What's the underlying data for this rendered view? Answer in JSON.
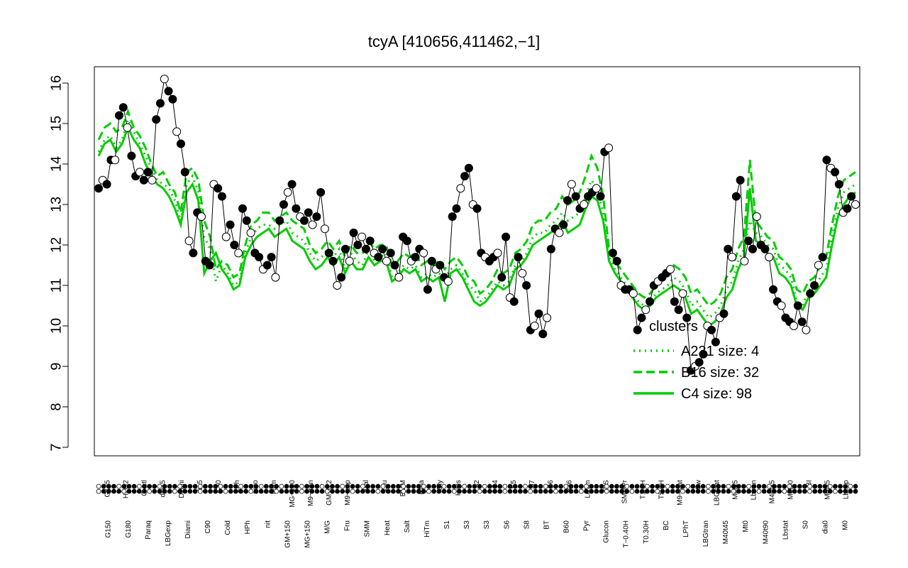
{
  "chart_data": {
    "type": "line",
    "title": "tcyA [410656,411462,−1]",
    "ylim": [
      7,
      16
    ],
    "yticks": [
      7,
      8,
      9,
      10,
      11,
      12,
      13,
      14,
      15,
      16
    ],
    "grid": false,
    "legend_position": "right",
    "legend_title": "clusters",
    "x_labels_top": [
      "G135",
      "H2O2",
      "Oxctl",
      "dia15",
      "Diami",
      "dia5",
      "C30",
      "LPh",
      "aero",
      "ferm",
      "MG+120",
      "M9−tran",
      "GM−0.2",
      "M9−exp",
      "Mal",
      "Glu",
      "BMM",
      "Etha",
      "Gly",
      "HiOs",
      "S2",
      "S4",
      "S5",
      "S7",
      "S6",
      "B36",
      "LoTm",
      "G/S",
      "SMMPr",
      "T1.0H",
      "T5.0H",
      "M9−stat",
      "Sw",
      "LBGstat",
      "M0t45",
      "Lbtran",
      "M40t45",
      "M0t90",
      "BI",
      "M0t45",
      "Lbexp"
    ],
    "x_labels_bottom": [
      "G150",
      "G180",
      "Paraq",
      "LBGexp",
      "Diami",
      "C90",
      "Cold",
      "HPh",
      "nit",
      "GM+150",
      "MG+150",
      "M/G",
      "Fru",
      "SMM",
      "Heat",
      "Salt",
      "HiTm",
      "S1",
      "S3",
      "S3",
      "S6",
      "S8",
      "BT",
      "B60",
      "Pyr",
      "Glucon",
      "T−0.40H",
      "T0.30H",
      "BC",
      "LPhT",
      "LBGtran",
      "M40t45",
      "Mt0",
      "M40t90",
      "Lbstat",
      "S0",
      "dia0",
      "M0"
    ],
    "series": [
      {
        "name": "A231 size: 4",
        "style": "dotted",
        "color": "#00cc00",
        "values": [
          14.3,
          14.6,
          14.7,
          14.4,
          14.6,
          15.1,
          14.8,
          14.5,
          14.2,
          13.9,
          13.6,
          13.5,
          13.4,
          13.1,
          12.6,
          13.5,
          13.7,
          13.3,
          12.2,
          11.9,
          11.1,
          11.5,
          11.3,
          11.0,
          11.1,
          11.8,
          12.2,
          12.4,
          12.5,
          12.5,
          12.4,
          12.5,
          12.6,
          12.3,
          12.2,
          12.1,
          11.8,
          11.6,
          11.7,
          11.9,
          11.7,
          11.9,
          11.4,
          11.8,
          11.6,
          11.5,
          11.9,
          11.6,
          11.7,
          11.8,
          11.2,
          11.3,
          11.5,
          11.4,
          11.5,
          11.2,
          11.3,
          11.2,
          11.3,
          11.2,
          11.4,
          11.5,
          11.3,
          11.0,
          10.9,
          10.6,
          10.7,
          10.9,
          11.1,
          11.0,
          11.1,
          11.5,
          11.6,
          11.8,
          12.2,
          12.3,
          12.3,
          12.5,
          12.6,
          12.8,
          12.6,
          12.7,
          12.8,
          13.2,
          13.6,
          13.4,
          12.8,
          11.7,
          11.4,
          11.2,
          11.0,
          10.8,
          10.6,
          10.5,
          10.6,
          10.8,
          10.9,
          11.0,
          11.2,
          11.1,
          10.9,
          10.5,
          10.6,
          10.4,
          10.2,
          10.3,
          10.5,
          10.9,
          11.1,
          11.6,
          11.9,
          12.6,
          12.3,
          12.2,
          12.0,
          11.9,
          11.5,
          11.4,
          11.2,
          10.6,
          10.5,
          10.9,
          10.9,
          11.2,
          11.4,
          12.2,
          12.9,
          13.3,
          13.4,
          13.5
        ]
      },
      {
        "name": "B16 size: 32",
        "style": "dashed",
        "color": "#00cc00",
        "values": [
          14.6,
          14.9,
          15.0,
          14.8,
          14.9,
          15.3,
          14.9,
          14.7,
          14.4,
          14.0,
          13.7,
          13.8,
          13.5,
          13.3,
          12.8,
          13.8,
          13.9,
          13.6,
          12.6,
          12.2,
          11.4,
          11.6,
          11.5,
          11.2,
          11.3,
          12.0,
          12.5,
          12.6,
          12.8,
          12.8,
          12.6,
          12.7,
          12.8,
          12.6,
          12.5,
          12.4,
          12.0,
          11.8,
          11.9,
          12.1,
          11.9,
          12.1,
          11.7,
          12.0,
          11.8,
          11.8,
          12.1,
          11.9,
          12.0,
          12.0,
          11.5,
          11.6,
          11.8,
          11.7,
          11.8,
          11.5,
          11.6,
          11.5,
          11.6,
          11.4,
          11.6,
          11.7,
          11.5,
          11.2,
          11.1,
          10.8,
          10.9,
          11.1,
          11.4,
          11.3,
          11.4,
          11.8,
          11.9,
          12.1,
          12.5,
          12.6,
          12.6,
          12.8,
          12.9,
          13.2,
          13.0,
          13.1,
          13.3,
          13.7,
          14.2,
          13.9,
          13.2,
          11.9,
          11.6,
          11.4,
          11.2,
          11.0,
          10.8,
          10.7,
          10.8,
          11.0,
          11.2,
          11.3,
          11.5,
          11.4,
          11.2,
          10.8,
          10.9,
          10.7,
          10.5,
          10.6,
          10.8,
          11.2,
          11.4,
          11.9,
          12.2,
          14.1,
          12.6,
          12.4,
          12.2,
          12.1,
          11.7,
          11.6,
          11.4,
          10.9,
          10.8,
          11.1,
          11.2,
          11.5,
          11.7,
          12.5,
          13.2,
          13.6,
          13.7,
          13.8
        ]
      },
      {
        "name": "C4 size: 98",
        "style": "solid",
        "color": "#00cc00",
        "values": [
          14.2,
          14.5,
          14.6,
          14.3,
          14.5,
          14.9,
          14.6,
          14.4,
          14.0,
          13.7,
          13.5,
          13.4,
          13.2,
          12.9,
          12.5,
          13.3,
          13.5,
          13.1,
          11.3,
          11.6,
          11.8,
          11.4,
          11.2,
          10.9,
          11.0,
          11.7,
          12.0,
          12.2,
          12.3,
          12.4,
          12.2,
          12.3,
          12.4,
          12.1,
          12.0,
          11.9,
          11.6,
          11.4,
          11.5,
          11.7,
          11.5,
          11.7,
          11.3,
          11.6,
          11.4,
          11.4,
          11.7,
          11.5,
          11.6,
          11.6,
          11.1,
          11.2,
          11.4,
          11.3,
          11.4,
          11.1,
          11.2,
          11.1,
          11.2,
          10.6,
          11.3,
          11.4,
          11.2,
          10.9,
          10.6,
          10.5,
          10.6,
          10.8,
          11.0,
          10.9,
          11.0,
          11.4,
          11.5,
          11.7,
          12.0,
          12.1,
          12.2,
          12.3,
          12.4,
          12.6,
          12.3,
          12.4,
          12.5,
          12.9,
          13.2,
          13.1,
          12.6,
          11.6,
          11.3,
          11.1,
          10.9,
          10.7,
          10.5,
          10.4,
          10.5,
          10.7,
          10.8,
          10.9,
          11.0,
          10.9,
          10.7,
          10.3,
          10.4,
          10.2,
          10.0,
          10.1,
          10.3,
          10.7,
          10.9,
          11.4,
          11.7,
          13.4,
          12.1,
          12.0,
          11.8,
          11.7,
          11.3,
          11.2,
          11.0,
          10.5,
          10.4,
          10.7,
          10.8,
          11.0,
          11.2,
          12.0,
          12.7,
          13.0,
          13.2,
          13.3
        ]
      },
      {
        "name": "tcyA",
        "style": "points",
        "color": "#000000",
        "values": [
          13.4,
          13.6,
          13.5,
          14.1,
          14.1,
          15.2,
          15.4,
          14.9,
          14.2,
          13.7,
          13.8,
          13.6,
          13.8,
          13.6,
          15.1,
          15.5,
          16.1,
          15.8,
          15.6,
          14.8,
          14.5,
          13.8,
          12.1,
          11.8,
          12.8,
          12.7,
          11.6,
          11.5,
          13.5,
          13.4,
          13.2,
          12.2,
          12.5,
          12.0,
          11.8,
          12.9,
          12.6,
          12.3,
          11.8,
          11.7,
          11.4,
          11.5,
          11.7,
          11.2,
          12.6,
          13.0,
          13.3,
          13.5,
          12.9,
          12.7,
          12.6,
          12.8,
          12.5,
          12.7,
          13.3,
          12.4,
          11.8,
          11.6,
          11.0,
          11.2,
          11.9,
          11.6,
          12.3,
          12.0,
          12.2,
          11.9,
          12.1,
          11.8,
          11.7,
          11.9,
          11.6,
          11.8,
          11.5,
          11.2,
          12.2,
          12.1,
          11.6,
          11.7,
          11.9,
          11.8,
          10.9,
          11.6,
          11.4,
          11.5,
          11.2,
          11.1,
          12.7,
          12.9,
          13.4,
          13.7,
          13.9,
          13.0,
          12.9,
          11.8,
          11.7,
          11.6,
          11.7,
          11.8,
          11.2,
          12.2,
          10.7,
          10.6,
          11.7,
          11.3,
          11.0,
          9.9,
          10.0,
          10.3,
          9.8,
          10.2,
          11.9,
          12.4,
          12.3,
          12.5,
          13.1,
          13.5,
          13.2,
          12.9,
          13.0,
          13.2,
          13.3,
          13.4,
          13.2,
          14.3,
          14.4,
          11.8,
          11.6,
          11.0,
          10.9,
          10.9,
          10.8,
          9.9,
          10.2,
          10.4,
          10.6,
          11.0,
          11.1,
          11.2,
          11.3,
          11.4,
          10.6,
          10.4,
          10.8,
          10.2,
          8.9,
          9.0,
          9.1,
          9.3,
          10.0,
          9.9,
          9.6,
          10.2,
          10.3,
          11.9,
          11.7,
          13.2,
          13.6,
          11.6,
          12.1,
          11.9,
          12.7,
          12.0,
          11.9,
          11.7,
          10.9,
          10.6,
          10.5,
          10.2,
          10.1,
          10.0,
          10.5,
          10.1,
          9.9,
          10.8,
          11.0,
          11.5,
          11.7,
          14.1,
          13.9,
          13.8,
          13.5,
          12.8,
          12.9,
          13.2,
          13.0
        ]
      }
    ]
  }
}
